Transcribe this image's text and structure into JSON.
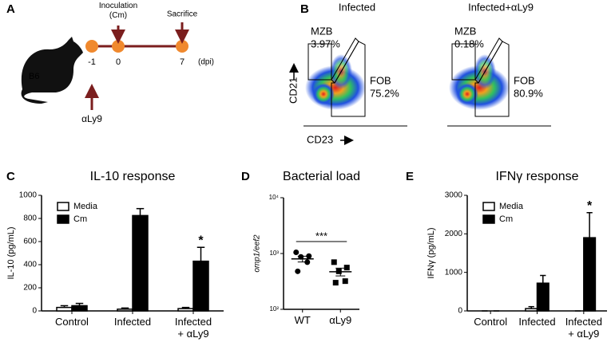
{
  "panel_a": {
    "letter": "A",
    "mouse": "B6",
    "inoculation": "Inoculation\n(Cm)",
    "sacrifice": "Sacrifice",
    "days": [
      "-1",
      "0",
      "7"
    ],
    "unit": "(dpi)",
    "treatment": "αLy9"
  },
  "panel_b": {
    "letter": "B",
    "y_axis": "CD21",
    "x_axis": "CD23",
    "plots": [
      {
        "title": "Infected",
        "mzb": "MZB",
        "mzb_pct": "3.97%",
        "fob": "FOB",
        "fob_pct": "75.2%"
      },
      {
        "title": "Infected+αLy9",
        "mzb": "MZB",
        "mzb_pct": "0.18%",
        "fob": "FOB",
        "fob_pct": "80.9%"
      }
    ]
  },
  "chart_data": [
    {
      "type": "bar",
      "letter": "C",
      "title": "IL-10 response",
      "ylabel": "IL-10 (pg/mL)",
      "categories": [
        "Control",
        "Infected",
        "Infected\n+ αLy9"
      ],
      "series": [
        {
          "name": "Media",
          "color": "#ffffff",
          "values": [
            30,
            15,
            20
          ],
          "errors": [
            15,
            10,
            10
          ]
        },
        {
          "name": "Cm",
          "color": "#000000",
          "values": [
            45,
            825,
            430
          ],
          "errors": [
            20,
            60,
            120
          ]
        }
      ],
      "ylim": [
        0,
        1000
      ],
      "yticks": [
        0,
        200,
        400,
        600,
        800,
        1000
      ],
      "legend": "upper left",
      "annotations": [
        {
          "text": "*",
          "category": "Infected\n+ αLy9"
        }
      ]
    },
    {
      "type": "dot",
      "letter": "D",
      "title": "Bacterial load",
      "ylabel": "omp1/eef2",
      "categories": [
        "WT",
        "αLy9"
      ],
      "values": [
        [
          1050,
          900,
          870,
          700,
          480
        ],
        [
          700,
          560,
          480,
          320,
          300
        ]
      ],
      "means": [
        800,
        472
      ],
      "sems": [
        95,
        75
      ],
      "color": "#000000",
      "ylim": [
        100,
        10000
      ],
      "log_y": true,
      "yticks": [
        {
          "value": 100,
          "label": "10²"
        },
        {
          "value": 1000,
          "label": "10³"
        },
        {
          "value": 10000,
          "label": "10⁴"
        }
      ],
      "annotations": [
        {
          "text": "***",
          "between": [
            "WT",
            "αLy9"
          ]
        }
      ]
    },
    {
      "type": "bar",
      "letter": "E",
      "title": "IFNγ response",
      "ylabel": "IFNγ (pg/mL)",
      "categories": [
        "Control",
        "Infected",
        "Infected\n+ αLy9"
      ],
      "series": [
        {
          "name": "Media",
          "color": "#ffffff",
          "values": [
            0,
            60,
            0
          ],
          "errors": [
            0,
            50,
            0
          ]
        },
        {
          "name": "Cm",
          "color": "#000000",
          "values": [
            0,
            720,
            1900
          ],
          "errors": [
            0,
            200,
            650
          ]
        }
      ],
      "ylim": [
        0,
        3000
      ],
      "yticks": [
        0,
        1000,
        2000,
        3000
      ],
      "legend": "upper left",
      "annotations": [
        {
          "text": "*",
          "category": "Infected\n+ αLy9"
        }
      ]
    }
  ]
}
